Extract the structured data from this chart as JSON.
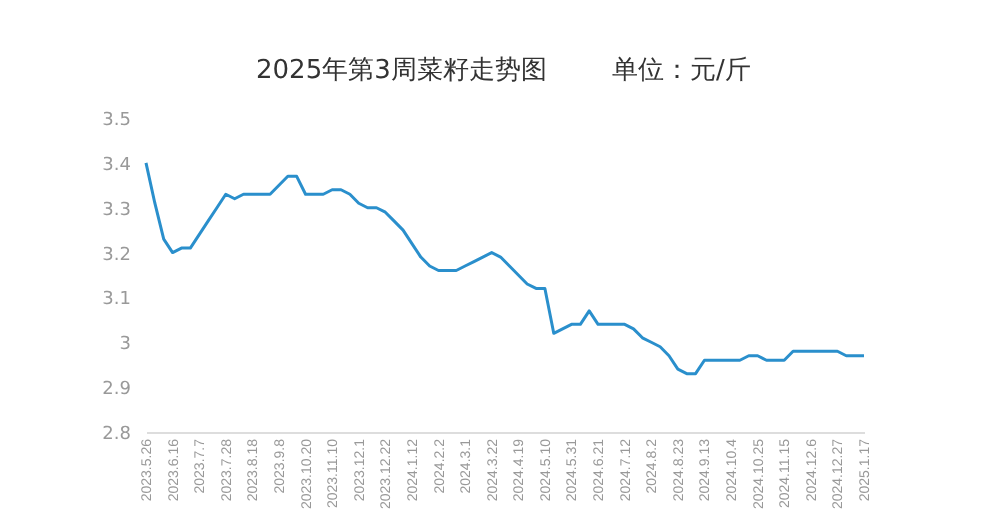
{
  "chart_data": {
    "type": "line",
    "title": "2025年第3周菜籽走势图",
    "annotations": [
      "单位：元/斤"
    ],
    "categories": [
      "2023.5.26",
      null,
      null,
      "2023.6.16",
      null,
      null,
      "2023.7.7",
      null,
      null,
      "2023.7.28",
      null,
      null,
      "2023.8.18",
      null,
      null,
      "2023.9.8",
      null,
      null,
      "2023.10.20",
      null,
      null,
      "2023.11.10",
      null,
      null,
      "2023.12.1",
      null,
      null,
      "2023.12.22",
      null,
      null,
      "2024.1.12",
      null,
      null,
      "2024.2.2",
      null,
      null,
      "2024.3.1",
      null,
      null,
      "2024.3.22",
      null,
      null,
      "2024.4.19",
      null,
      null,
      "2024.5.10",
      null,
      null,
      "2024.5.31",
      null,
      null,
      "2024.6.21",
      null,
      null,
      "2024.7.12",
      null,
      null,
      "2024.8.2",
      null,
      null,
      "2024.8.23",
      null,
      null,
      "2024.9.13",
      null,
      null,
      "2024.10.4",
      null,
      null,
      "2024.10.25",
      null,
      null,
      "2024.11.15",
      null,
      null,
      "2024.12.6",
      null,
      null,
      "2024.12.27",
      null,
      null,
      "2025.1.17"
    ],
    "series": [
      {
        "color": "#2a8fcc",
        "values": [
          3.4,
          3.31,
          3.23,
          3.2,
          3.21,
          3.21,
          3.24,
          3.27,
          3.3,
          3.33,
          3.32,
          3.33,
          3.33,
          3.33,
          3.33,
          3.35,
          3.37,
          3.37,
          3.33,
          3.33,
          3.33,
          3.34,
          3.34,
          3.33,
          3.31,
          3.3,
          3.3,
          3.29,
          3.27,
          3.25,
          3.22,
          3.19,
          3.17,
          3.16,
          3.16,
          3.16,
          3.17,
          3.18,
          3.19,
          3.2,
          3.19,
          3.17,
          3.15,
          3.13,
          3.12,
          3.12,
          3.02,
          3.03,
          3.04,
          3.04,
          3.07,
          3.04,
          3.04,
          3.04,
          3.04,
          3.03,
          3.01,
          3.0,
          2.99,
          2.97,
          2.94,
          2.93,
          2.93,
          2.96,
          2.96,
          2.96,
          2.96,
          2.96,
          2.97,
          2.97,
          2.96,
          2.96,
          2.96,
          2.98,
          2.98,
          2.98,
          2.98,
          2.98,
          2.98,
          2.97,
          2.97,
          2.97
        ]
      }
    ],
    "ylim": [
      2.8,
      3.5
    ],
    "yticks": [
      2.8,
      2.9,
      3,
      3.1,
      3.2,
      3.3,
      3.4,
      3.5
    ],
    "grid": false
  }
}
